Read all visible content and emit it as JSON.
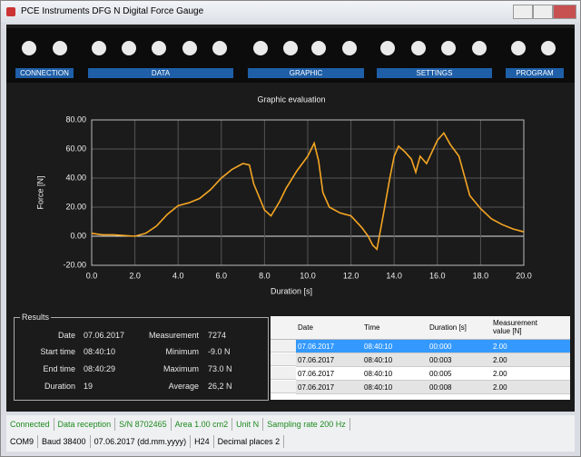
{
  "window": {
    "title": "PCE Instruments DFG N Digital Force Gauge"
  },
  "toolbar": {
    "groups": [
      "CONNECTION",
      "DATA",
      "GRAPHIC",
      "SETTINGS",
      "PROGRAM"
    ]
  },
  "chart_data": {
    "type": "line",
    "title": "Graphic evaluation",
    "x_label": "Duration [s]",
    "y_label": "Force [N]",
    "x": [
      0,
      0.5,
      1,
      2,
      2.5,
      3,
      3.5,
      4,
      4.5,
      5,
      5.5,
      6,
      6.5,
      7,
      7.3,
      7.5,
      8,
      8.3,
      8.7,
      9,
      9.5,
      10,
      10.3,
      10.5,
      10.7,
      11,
      11.5,
      12,
      12.5,
      12.8,
      13,
      13.2,
      13.5,
      13.8,
      14,
      14.2,
      14.5,
      14.8,
      15,
      15.2,
      15.5,
      16,
      16.3,
      16.6,
      17,
      17.5,
      18,
      18.5,
      19,
      19.5,
      20
    ],
    "series": [
      {
        "name": "Force",
        "color": "#f5a623",
        "values": [
          2,
          1,
          1,
          0,
          2,
          7,
          15,
          21,
          23,
          26,
          32,
          40,
          46,
          50,
          49,
          36,
          18,
          14,
          24,
          33,
          45,
          55,
          64,
          52,
          30,
          20,
          16,
          14,
          6,
          0,
          -6,
          -9,
          15,
          40,
          55,
          62,
          58,
          53,
          44,
          55,
          50,
          66,
          71,
          63,
          55,
          28,
          19,
          12,
          8,
          5,
          3
        ]
      }
    ],
    "xlim": [
      0,
      20
    ],
    "ylim": [
      -20,
      80
    ],
    "xticks": [
      {
        "value": 0,
        "label": "0.0"
      },
      {
        "value": 2,
        "label": "2.0"
      },
      {
        "value": 4,
        "label": "4.0"
      },
      {
        "value": 6,
        "label": "6.0"
      },
      {
        "value": 8,
        "label": "8.0"
      },
      {
        "value": 10,
        "label": "10.0"
      },
      {
        "value": 12,
        "label": "12.0"
      },
      {
        "value": 14,
        "label": "14.0"
      },
      {
        "value": 16,
        "label": "16.0"
      },
      {
        "value": 18,
        "label": "18.0"
      },
      {
        "value": 20,
        "label": "20.0"
      }
    ],
    "yticks": [
      {
        "value": -20,
        "label": "-20.00"
      },
      {
        "value": 0,
        "label": "0.00"
      },
      {
        "value": 20,
        "label": "20.00"
      },
      {
        "value": 40,
        "label": "40.00"
      },
      {
        "value": 60,
        "label": "60.00"
      },
      {
        "value": 80,
        "label": "80.00"
      }
    ],
    "grid": true
  },
  "results": {
    "title": "Results",
    "left": [
      [
        "Date",
        "07.06.2017"
      ],
      [
        "Start time",
        "08:40:10"
      ],
      [
        "End time",
        "08:40:29"
      ],
      [
        "Duration",
        "19"
      ]
    ],
    "right": [
      [
        "Measurement",
        "7274"
      ],
      [
        "Minimum",
        "-9.0 N"
      ],
      [
        "Maximum",
        "73.0 N"
      ],
      [
        "Average",
        "26,2 N"
      ]
    ]
  },
  "table": {
    "headers": [
      "Date",
      "Time",
      "Duration [s]",
      "Measurement value [N]"
    ],
    "rows": [
      [
        "07.06.2017",
        "08:40:10",
        "00:000",
        "2.00"
      ],
      [
        "07.06.2017",
        "08:40:10",
        "00:003",
        "2.00"
      ],
      [
        "07.06.2017",
        "08:40:10",
        "00:005",
        "2.00"
      ],
      [
        "07.06.2017",
        "08:40:10",
        "00:008",
        "2.00"
      ]
    ]
  },
  "status_bar": {
    "row1": [
      "Connected",
      "Data reception",
      "S/N 8702465",
      "Area 1.00 cm2",
      "Unit N",
      "Sampling rate 200 Hz"
    ],
    "row2": [
      "COM9",
      "Baud 38400",
      "07.06.2017 (dd.mm.yyyy)",
      "H24",
      "Decimal places 2"
    ]
  }
}
